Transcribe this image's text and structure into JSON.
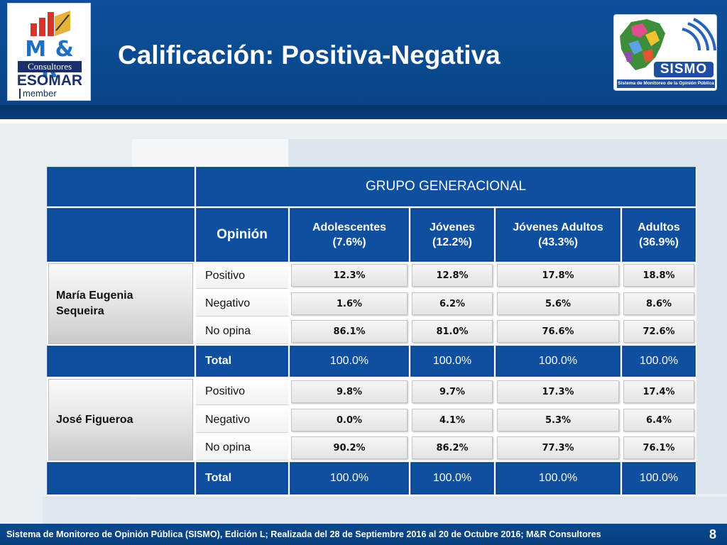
{
  "header": {
    "title": "Calificación: Positiva-Negativa",
    "logo_left": {
      "brand": "M & R",
      "sub": "Consultores",
      "org": "ESOMAR",
      "tag": "member"
    },
    "logo_right": {
      "word": "SISMO",
      "caption": "Sistema de Monitoreo de la Opinión Pública"
    }
  },
  "table": {
    "group_header": "GRUPO GENERACIONAL",
    "opinion_header": "Opinión",
    "columns": [
      {
        "name": "Adolescentes",
        "share": "(7.6%)"
      },
      {
        "name": "Jóvenes",
        "share": "(12.2%)"
      },
      {
        "name": "Jóvenes Adultos",
        "share": "(43.3%)"
      },
      {
        "name": "Adultos",
        "share": "(36.9%)"
      }
    ],
    "candidates": [
      {
        "name_line1": "María Eugenia",
        "name_line2": "Sequeira",
        "rows": [
          {
            "label": "Positivo",
            "values": [
              "12.3%",
              "12.8%",
              "17.8%",
              "18.8%"
            ]
          },
          {
            "label": "Negativo",
            "values": [
              "1.6%",
              "6.2%",
              "5.6%",
              "8.6%"
            ]
          },
          {
            "label": "No opina",
            "values": [
              "86.1%",
              "81.0%",
              "76.6%",
              "72.6%"
            ]
          }
        ],
        "total_label": "Total",
        "totals": [
          "100.0%",
          "100.0%",
          "100.0%",
          "100.0%"
        ]
      },
      {
        "name_line1": "José Figueroa",
        "name_line2": "",
        "rows": [
          {
            "label": "Positivo",
            "values": [
              "9.8%",
              "9.7%",
              "17.3%",
              "17.4%"
            ]
          },
          {
            "label": "Negativo",
            "values": [
              "0.0%",
              "4.1%",
              "5.3%",
              "6.4%"
            ]
          },
          {
            "label": "No opina",
            "values": [
              "90.2%",
              "86.2%",
              "77.3%",
              "76.1%"
            ]
          }
        ],
        "total_label": "Total",
        "totals": [
          "100.0%",
          "100.0%",
          "100.0%",
          "100.0%"
        ]
      }
    ]
  },
  "footer": {
    "source": "Sistema de Monitoreo de Opinión Pública (SISMO), Edición L; Realizada del 28 de Septiembre 2016 al 20 de Octubre 2016; M&R Consultores",
    "page": "8"
  },
  "colors": {
    "header_blue": "#0d4f9a",
    "cell_blue": "#0f4fa0",
    "grey_cell": "#e2e2e2"
  }
}
